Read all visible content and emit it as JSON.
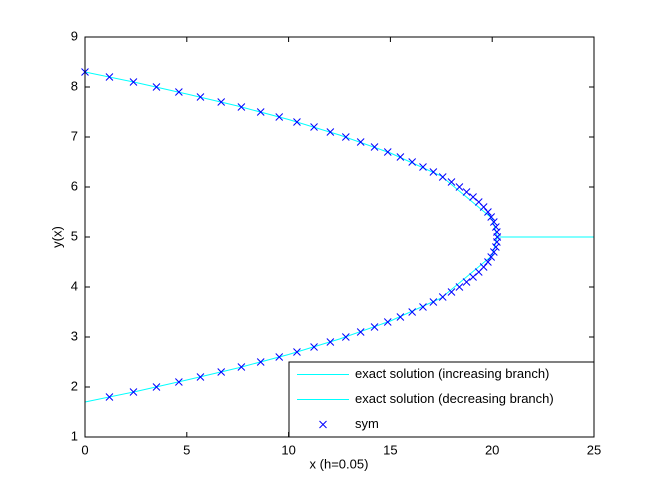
{
  "chart_data": {
    "type": "line",
    "xlabel": "x (h=0.05)",
    "ylabel": "y(x)",
    "xlim": [
      0,
      25
    ],
    "xticks": [
      0,
      5,
      10,
      15,
      20,
      25
    ],
    "ylim": [
      1,
      9
    ],
    "yticks": [
      1,
      2,
      3,
      4,
      5,
      6,
      7,
      8,
      9
    ],
    "legend": "lower right",
    "series": [
      {
        "name": "exact solution (increasing branch)",
        "color": "#00ffff",
        "mode": "lines",
        "x": [
          0,
          2.5,
          5,
          7.5,
          10,
          12.5,
          15,
          17.5,
          20,
          20.25,
          22.5,
          25
        ],
        "values": [
          8.3,
          8.09,
          7.86,
          7.62,
          7.35,
          7.04,
          6.68,
          6.22,
          5.37,
          5,
          5,
          5
        ]
      },
      {
        "name": "exact solution (decreasing branch)",
        "color": "#00ffff",
        "mode": "lines",
        "x": [
          0,
          2.5,
          5,
          7.5,
          10,
          12.5,
          15,
          17.5,
          20,
          20.25,
          22.5,
          25
        ],
        "values": [
          1.7,
          1.91,
          2.14,
          2.38,
          2.65,
          2.96,
          3.32,
          3.78,
          4.63,
          5,
          5,
          5
        ]
      },
      {
        "name": "sym",
        "color": "#0000ff",
        "mode": "markers",
        "x": [
          1.2,
          2.38,
          3.51,
          4.61,
          5.67,
          6.69,
          7.68,
          8.63,
          9.54,
          10.41,
          11.25,
          12.05,
          12.81,
          13.54,
          14.22,
          14.87,
          15.49,
          16.07,
          16.6,
          17.11,
          17.57,
          18.0,
          18.39,
          18.74,
          19.06,
          19.34,
          19.58,
          19.79,
          19.95,
          20.08,
          20.18,
          20.23,
          20.25,
          20.23,
          20.18,
          20.08,
          19.95,
          19.79,
          19.58,
          19.34,
          19.06,
          18.74,
          18.39,
          18.0,
          17.57,
          17.11,
          16.6,
          16.07,
          15.49,
          14.87,
          14.22,
          13.54,
          12.81,
          12.05,
          11.25,
          10.41,
          9.54,
          8.63,
          7.68,
          6.69,
          5.67,
          4.61,
          3.51,
          2.38,
          1.2,
          0.0
        ],
        "values": [
          1.8,
          1.9,
          2.0,
          2.1,
          2.2,
          2.3,
          2.4,
          2.5,
          2.6,
          2.7,
          2.8,
          2.9,
          3.0,
          3.1,
          3.2,
          3.3,
          3.4,
          3.5,
          3.6,
          3.7,
          3.8,
          3.9,
          4.0,
          4.1,
          4.2,
          4.3,
          4.4,
          4.5,
          4.6,
          4.7,
          4.8,
          4.9,
          5.0,
          5.1,
          5.2,
          5.3,
          5.4,
          5.5,
          5.6,
          5.7,
          5.8,
          5.9,
          6.0,
          6.1,
          6.2,
          6.3,
          6.4,
          6.5,
          6.6,
          6.7,
          6.8,
          6.9,
          7.0,
          7.1,
          7.2,
          7.3,
          7.4,
          7.5,
          7.6,
          7.7,
          7.8,
          7.9,
          8.0,
          8.1,
          8.2,
          8.3
        ]
      }
    ]
  }
}
